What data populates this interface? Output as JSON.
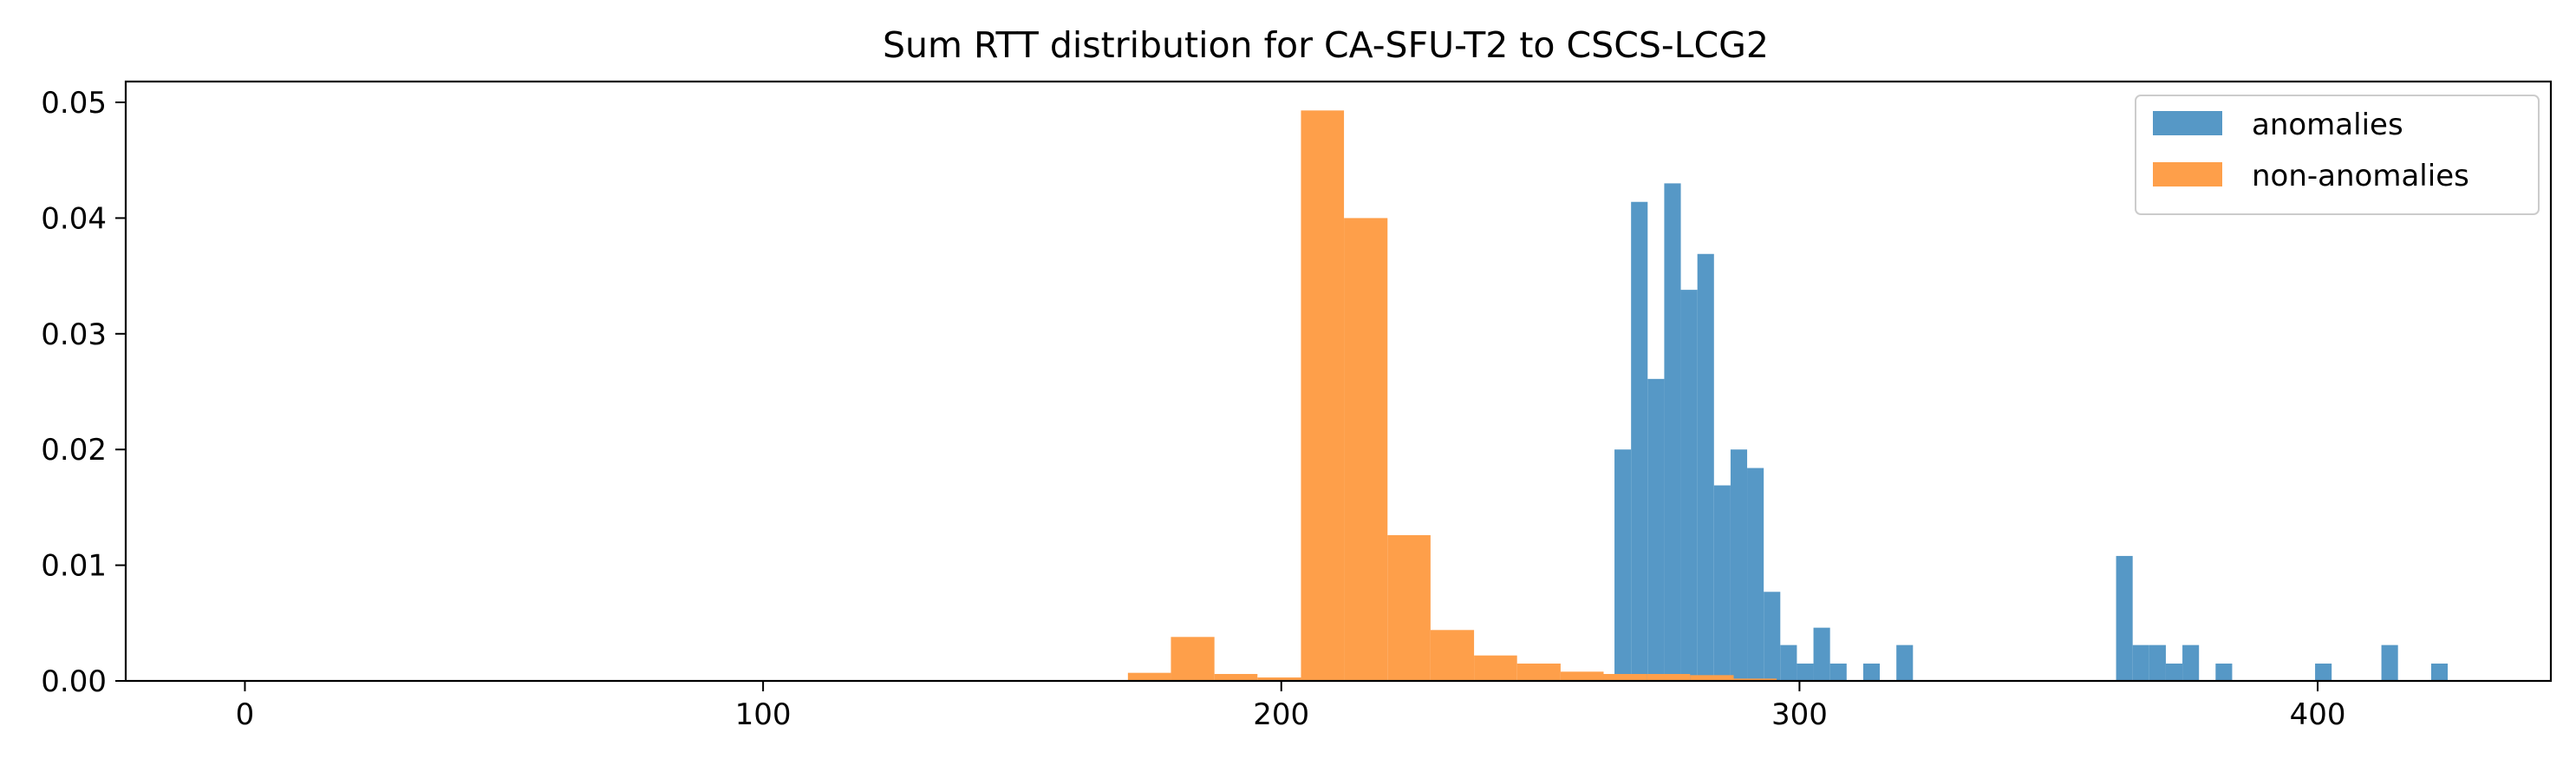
{
  "chart_data": {
    "type": "bar",
    "title": "Sum RTT distribution for CA-SFU-T2 to CSCS-LCG2",
    "xlabel": "",
    "ylabel": "",
    "xlim": [
      -23,
      445
    ],
    "ylim": [
      0,
      0.0518
    ],
    "x_ticks": [
      0,
      100,
      200,
      300,
      400
    ],
    "x_tick_labels": [
      "0",
      "100",
      "200",
      "300",
      "400"
    ],
    "y_ticks": [
      0.0,
      0.01,
      0.02,
      0.03,
      0.04,
      0.05
    ],
    "y_tick_labels": [
      "0.00",
      "0.01",
      "0.02",
      "0.03",
      "0.04",
      "0.05"
    ],
    "grid": false,
    "legend_position": "top-right",
    "series": [
      {
        "name": "anomalies",
        "color": "#5698c6",
        "bins": [
          {
            "x0": 264.3,
            "x1": 267.5,
            "y": 0.02
          },
          {
            "x0": 267.5,
            "x1": 270.7,
            "y": 0.0414
          },
          {
            "x0": 270.7,
            "x1": 273.9,
            "y": 0.0261
          },
          {
            "x0": 273.9,
            "x1": 277.1,
            "y": 0.043
          },
          {
            "x0": 277.1,
            "x1": 280.3,
            "y": 0.0338
          },
          {
            "x0": 280.3,
            "x1": 283.5,
            "y": 0.0369
          },
          {
            "x0": 283.5,
            "x1": 286.7,
            "y": 0.0169
          },
          {
            "x0": 286.7,
            "x1": 289.9,
            "y": 0.02
          },
          {
            "x0": 289.9,
            "x1": 293.1,
            "y": 0.0184
          },
          {
            "x0": 293.1,
            "x1": 296.3,
            "y": 0.0077
          },
          {
            "x0": 296.3,
            "x1": 299.5,
            "y": 0.0031
          },
          {
            "x0": 299.5,
            "x1": 302.7,
            "y": 0.0015
          },
          {
            "x0": 302.7,
            "x1": 305.9,
            "y": 0.0046
          },
          {
            "x0": 305.9,
            "x1": 309.1,
            "y": 0.0015
          },
          {
            "x0": 312.3,
            "x1": 315.5,
            "y": 0.0015
          },
          {
            "x0": 318.7,
            "x1": 321.9,
            "y": 0.0031
          },
          {
            "x0": 361.1,
            "x1": 364.3,
            "y": 0.0108
          },
          {
            "x0": 364.3,
            "x1": 367.5,
            "y": 0.0031
          },
          {
            "x0": 367.5,
            "x1": 370.7,
            "y": 0.0031
          },
          {
            "x0": 370.7,
            "x1": 373.9,
            "y": 0.0015
          },
          {
            "x0": 373.9,
            "x1": 377.1,
            "y": 0.0031
          },
          {
            "x0": 380.3,
            "x1": 383.5,
            "y": 0.0015
          },
          {
            "x0": 399.5,
            "x1": 402.7,
            "y": 0.0015
          },
          {
            "x0": 412.3,
            "x1": 415.5,
            "y": 0.0031
          },
          {
            "x0": 421.9,
            "x1": 425.1,
            "y": 0.0015
          }
        ]
      },
      {
        "name": "non-anomalies",
        "color": "#fe9f4a",
        "bins": [
          {
            "x0": 170.4,
            "x1": 178.7,
            "y": 0.0007
          },
          {
            "x0": 178.7,
            "x1": 187.1,
            "y": 0.0038
          },
          {
            "x0": 187.1,
            "x1": 195.4,
            "y": 0.0006
          },
          {
            "x0": 195.4,
            "x1": 203.8,
            "y": 0.0003
          },
          {
            "x0": 203.8,
            "x1": 212.1,
            "y": 0.0493
          },
          {
            "x0": 212.1,
            "x1": 220.5,
            "y": 0.04
          },
          {
            "x0": 220.5,
            "x1": 228.8,
            "y": 0.0126
          },
          {
            "x0": 228.8,
            "x1": 237.2,
            "y": 0.0044
          },
          {
            "x0": 237.2,
            "x1": 245.5,
            "y": 0.0022
          },
          {
            "x0": 245.5,
            "x1": 253.9,
            "y": 0.0015
          },
          {
            "x0": 253.9,
            "x1": 262.2,
            "y": 0.0008
          },
          {
            "x0": 262.2,
            "x1": 270.6,
            "y": 0.0006
          },
          {
            "x0": 270.6,
            "x1": 278.9,
            "y": 0.0006
          },
          {
            "x0": 278.9,
            "x1": 287.3,
            "y": 0.0005
          },
          {
            "x0": 287.3,
            "x1": 295.6,
            "y": 0.0002
          }
        ]
      }
    ]
  }
}
